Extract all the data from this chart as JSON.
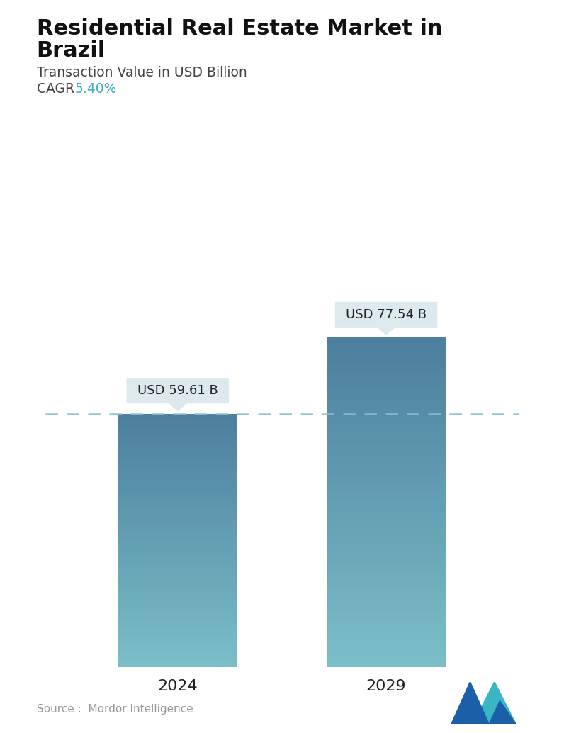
{
  "title_line1": "Residential Real Estate Market in",
  "title_line2": "Brazil",
  "subtitle": "Transaction Value in USD Billion",
  "cagr_label": "CAGR ",
  "cagr_value": "5.40%",
  "cagr_color": "#3aafc0",
  "categories": [
    "2024",
    "2029"
  ],
  "values": [
    59.61,
    77.54
  ],
  "bar_labels": [
    "USD 59.61 B",
    "USD 77.54 B"
  ],
  "bar_top_color": "#4d7f9e",
  "bar_bottom_color": "#7bbfc8",
  "dashed_line_color": "#88bfcc",
  "source_text": "Source :  Mordor Intelligence",
  "source_color": "#999999",
  "background_color": "#ffffff",
  "title_color": "#111111",
  "subtitle_color": "#444444",
  "tick_label_color": "#222222",
  "tooltip_bg": "#dce9ee",
  "tooltip_text_color": "#222222",
  "ylim": [
    0,
    95
  ]
}
